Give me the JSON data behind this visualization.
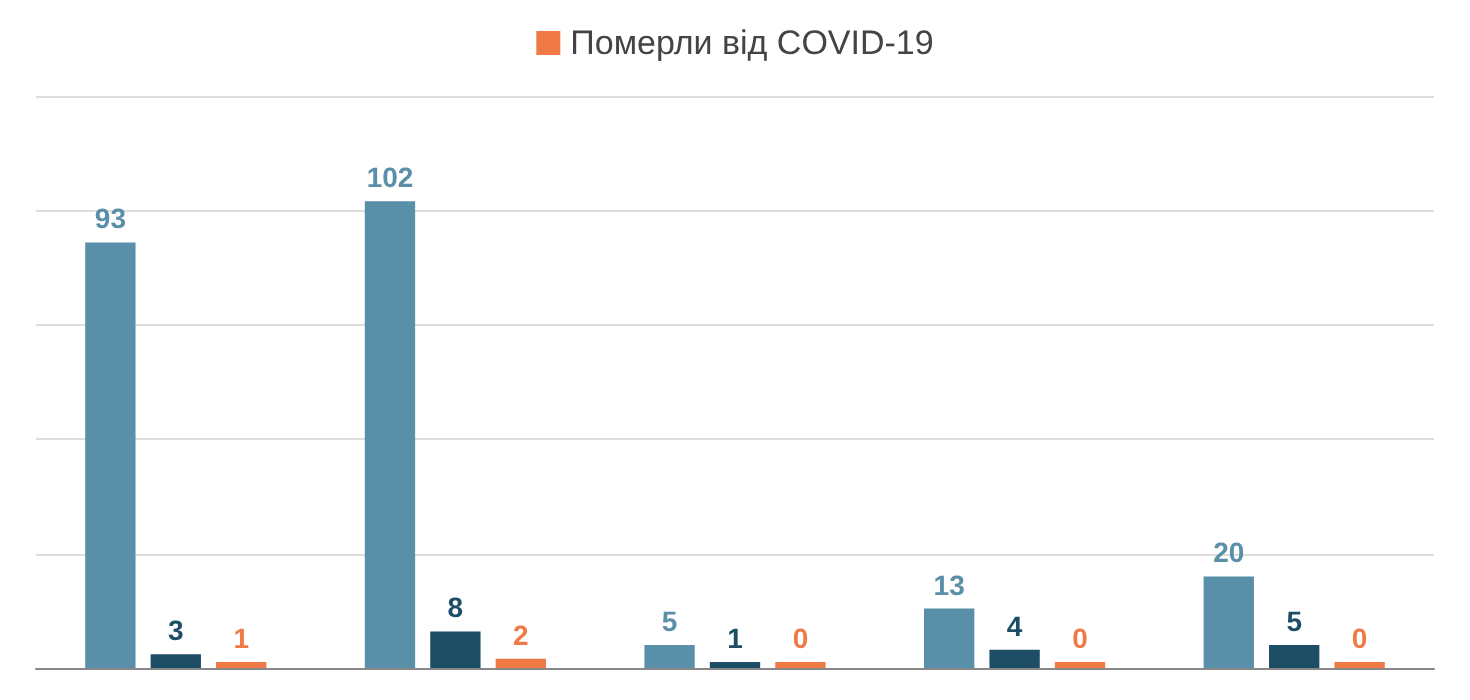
{
  "chart_data": {
    "type": "bar",
    "categories": [
      null,
      null,
      null,
      null,
      null
    ],
    "series": [
      {
        "color": "#5a8fa9",
        "values": [
          93,
          102,
          5,
          13,
          20
        ]
      },
      {
        "color": "#1e4d66",
        "values": [
          3,
          8,
          1,
          4,
          5
        ]
      },
      {
        "name": "Померли від COVID-19",
        "color": "#f07a45",
        "values": [
          1,
          2,
          0,
          0,
          0
        ]
      }
    ],
    "ylim": [
      0,
      125
    ],
    "yticks": [
      0,
      25,
      50,
      75,
      100,
      125
    ],
    "tick_labels": false,
    "grid": "y",
    "legend": "top",
    "data_labels": true
  }
}
